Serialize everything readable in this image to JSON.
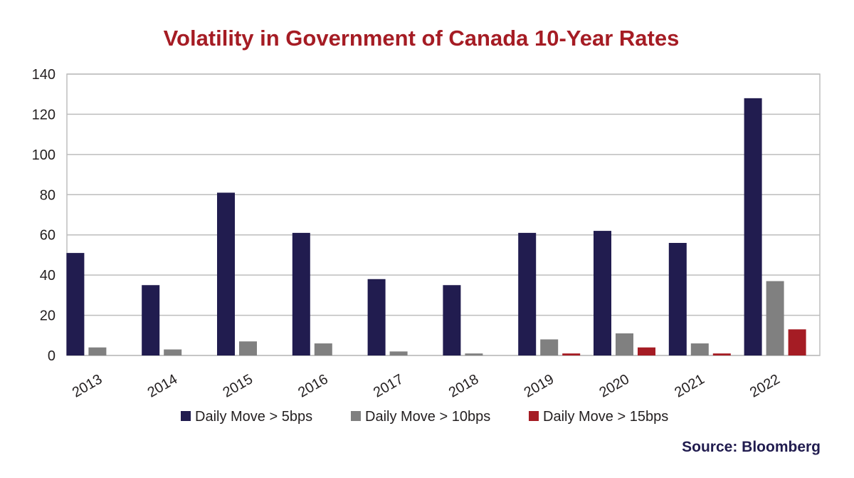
{
  "chart_data": {
    "type": "bar",
    "title": "Volatility in Government of Canada 10-Year Rates",
    "source": "Source: Bloomberg",
    "categories": [
      "2013",
      "2014",
      "2015",
      "2016",
      "2017",
      "2018",
      "2019",
      "2020",
      "2021",
      "2022"
    ],
    "series": [
      {
        "name": "Daily Move > 5bps",
        "color": "#211c4f",
        "values": [
          51,
          35,
          81,
          61,
          38,
          35,
          61,
          62,
          56,
          128
        ]
      },
      {
        "name": "Daily Move > 10bps",
        "color": "#808080",
        "values": [
          4,
          3,
          7,
          6,
          2,
          1,
          8,
          11,
          6,
          37
        ]
      },
      {
        "name": "Daily Move > 15bps",
        "color": "#a51c24",
        "values": [
          0,
          0,
          0,
          0,
          0,
          0,
          1,
          4,
          1,
          13
        ]
      }
    ],
    "ylim": [
      0,
      140
    ],
    "yticks": [
      0,
      20,
      40,
      60,
      80,
      100,
      120,
      140
    ],
    "xlabel": "",
    "ylabel": "",
    "grid": true,
    "legend": "bottom",
    "title_color": "#a51c24",
    "source_color": "#211c4f"
  }
}
